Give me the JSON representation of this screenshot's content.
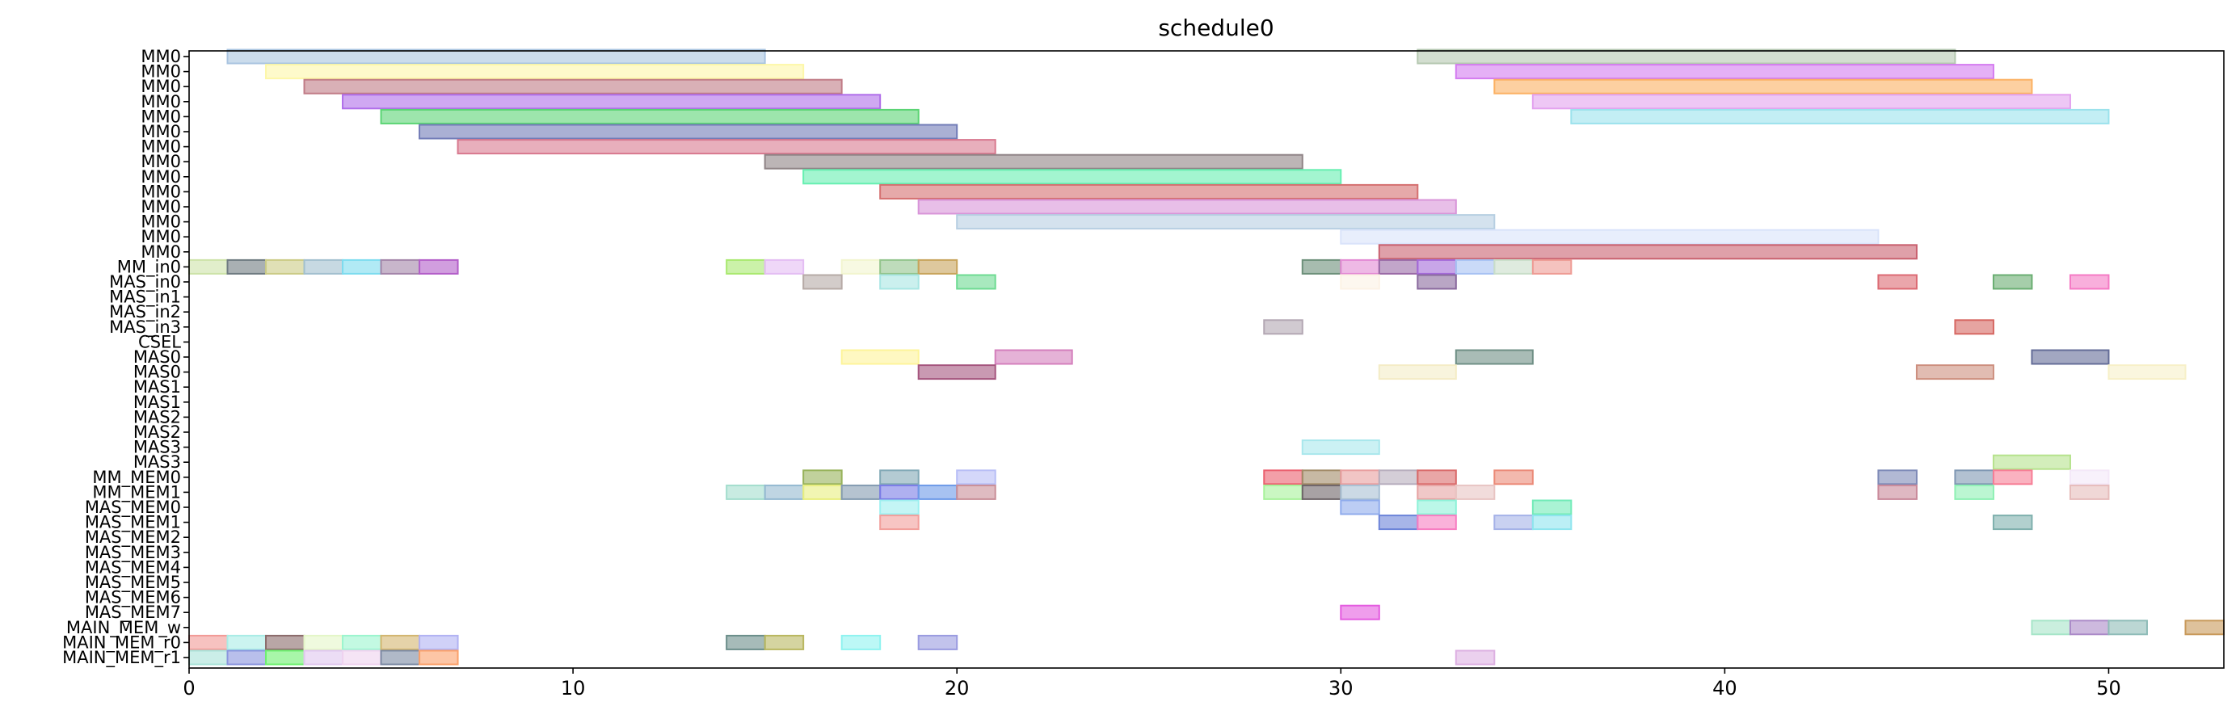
{
  "chart_data": {
    "type": "gantt",
    "title": "schedule0",
    "xlim": [
      0,
      53
    ],
    "xticks": [
      0,
      10,
      20,
      30,
      40,
      50
    ],
    "grid": false,
    "rows": [
      "MM0",
      "MM0",
      "MM0",
      "MM0",
      "MM0",
      "MM0",
      "MM0",
      "MM0",
      "MM0",
      "MM0",
      "MM0",
      "MM0",
      "MM0",
      "MM0",
      "MM_in0",
      "MAS_in0",
      "MAS_in1",
      "MAS_in2",
      "MAS_in3",
      "CSEL",
      "MAS0",
      "MAS0",
      "MAS1",
      "MAS1",
      "MAS2",
      "MAS2",
      "MAS3",
      "MAS3",
      "MM_MEM0",
      "MM_MEM1",
      "MAS_MEM0",
      "MAS_MEM1",
      "MAS_MEM2",
      "MAS_MEM3",
      "MAS_MEM4",
      "MAS_MEM5",
      "MAS_MEM6",
      "MAS_MEM7",
      "MAIN_MEM_w",
      "MAIN_MEM_r0",
      "MAIN_MEM_r1"
    ],
    "tasks": [
      {
        "row": 0,
        "start": 1,
        "end": 15,
        "color": "#a9c4e0"
      },
      {
        "row": 0,
        "start": 32,
        "end": 46,
        "color": "#b5c8b1"
      },
      {
        "row": 1,
        "start": 2,
        "end": 16,
        "color": "#fdf7a9"
      },
      {
        "row": 1,
        "start": 33,
        "end": 47,
        "color": "#d47cf0"
      },
      {
        "row": 2,
        "start": 3,
        "end": 17,
        "color": "#c07b86"
      },
      {
        "row": 2,
        "start": 34,
        "end": 48,
        "color": "#fcb163"
      },
      {
        "row": 3,
        "start": 4,
        "end": 18,
        "color": "#b06ee9"
      },
      {
        "row": 3,
        "start": 35,
        "end": 49,
        "color": "#e3a2ef"
      },
      {
        "row": 4,
        "start": 5,
        "end": 19,
        "color": "#5bd474"
      },
      {
        "row": 4,
        "start": 36,
        "end": 50,
        "color": "#9be2ec"
      },
      {
        "row": 5,
        "start": 6,
        "end": 20,
        "color": "#727cb7"
      },
      {
        "row": 6,
        "start": 7,
        "end": 21,
        "color": "#d8798f"
      },
      {
        "row": 7,
        "start": 15,
        "end": 29,
        "color": "#8f8386"
      },
      {
        "row": 8,
        "start": 16,
        "end": 30,
        "color": "#66efb1"
      },
      {
        "row": 9,
        "start": 18,
        "end": 32,
        "color": "#d57070"
      },
      {
        "row": 10,
        "start": 19,
        "end": 33,
        "color": "#d895d9"
      },
      {
        "row": 11,
        "start": 20,
        "end": 34,
        "color": "#b7cfe2"
      },
      {
        "row": 12,
        "start": 30,
        "end": 44,
        "color": "#d9e3fa"
      },
      {
        "row": 13,
        "start": 31,
        "end": 45,
        "color": "#c9616f"
      },
      {
        "row": 14,
        "start": 0,
        "end": 1,
        "color": "#cde3a8"
      },
      {
        "row": 14,
        "start": 1,
        "end": 2,
        "color": "#6f7b81"
      },
      {
        "row": 14,
        "start": 2,
        "end": 3,
        "color": "#cbcb86"
      },
      {
        "row": 14,
        "start": 3,
        "end": 4,
        "color": "#a2c0cf"
      },
      {
        "row": 14,
        "start": 4,
        "end": 5,
        "color": "#7ddcef"
      },
      {
        "row": 14,
        "start": 5,
        "end": 6,
        "color": "#a385a9"
      },
      {
        "row": 14,
        "start": 6,
        "end": 7,
        "color": "#b35ec9"
      },
      {
        "row": 14,
        "start": 14,
        "end": 15,
        "color": "#a9e96f"
      },
      {
        "row": 14,
        "start": 15,
        "end": 16,
        "color": "#e4bdf3"
      },
      {
        "row": 14,
        "start": 17,
        "end": 18,
        "color": "#f2f5cf"
      },
      {
        "row": 14,
        "start": 18,
        "end": 19,
        "color": "#93c58d"
      },
      {
        "row": 14,
        "start": 19,
        "end": 20,
        "color": "#c8a45c"
      },
      {
        "row": 14,
        "start": 29,
        "end": 30,
        "color": "#6d907a"
      },
      {
        "row": 14,
        "start": 30,
        "end": 31,
        "color": "#e38ad4"
      },
      {
        "row": 14,
        "start": 31,
        "end": 32,
        "color": "#9a6aa6"
      },
      {
        "row": 14,
        "start": 32,
        "end": 33,
        "color": "#a46ad9"
      },
      {
        "row": 14,
        "start": 33,
        "end": 34,
        "color": "#a7c2f3"
      },
      {
        "row": 14,
        "start": 34,
        "end": 35,
        "color": "#c9dec9"
      },
      {
        "row": 14,
        "start": 35,
        "end": 36,
        "color": "#ee9b94"
      },
      {
        "row": 15,
        "start": 16,
        "end": 17,
        "color": "#b6aaa6"
      },
      {
        "row": 15,
        "start": 18,
        "end": 19,
        "color": "#a8e6e3"
      },
      {
        "row": 15,
        "start": 20,
        "end": 21,
        "color": "#6edb92"
      },
      {
        "row": 15,
        "start": 30,
        "end": 31,
        "color": "#fcf2e5"
      },
      {
        "row": 15,
        "start": 32,
        "end": 33,
        "color": "#8a6a9e"
      },
      {
        "row": 15,
        "start": 44,
        "end": 45,
        "color": "#dc6a73"
      },
      {
        "row": 15,
        "start": 47,
        "end": 48,
        "color": "#6aae72"
      },
      {
        "row": 15,
        "start": 49,
        "end": 50,
        "color": "#f57ac4"
      },
      {
        "row": 18,
        "start": 28,
        "end": 29,
        "color": "#b3a7b3"
      },
      {
        "row": 18,
        "start": 46,
        "end": 47,
        "color": "#d66762"
      },
      {
        "row": 20,
        "start": 17,
        "end": 19,
        "color": "#fdf49a"
      },
      {
        "row": 20,
        "start": 21,
        "end": 23,
        "color": "#d47fbc"
      },
      {
        "row": 20,
        "start": 33,
        "end": 35,
        "color": "#6f8f85"
      },
      {
        "row": 20,
        "start": 48,
        "end": 50,
        "color": "#646d98"
      },
      {
        "row": 21,
        "start": 19,
        "end": 21,
        "color": "#a5557e"
      },
      {
        "row": 21,
        "start": 31,
        "end": 33,
        "color": "#f4ecc6"
      },
      {
        "row": 21,
        "start": 45,
        "end": 47,
        "color": "#cd8f7f"
      },
      {
        "row": 21,
        "start": 50,
        "end": 52,
        "color": "#f7f0c8"
      },
      {
        "row": 26,
        "start": 29,
        "end": 31,
        "color": "#a8e7ec"
      },
      {
        "row": 27,
        "start": 47,
        "end": 49,
        "color": "#b6e28d"
      },
      {
        "row": 28,
        "start": 16,
        "end": 17,
        "color": "#97b25a"
      },
      {
        "row": 28,
        "start": 18,
        "end": 19,
        "color": "#82a9b6"
      },
      {
        "row": 28,
        "start": 20,
        "end": 21,
        "color": "#b7bdf6"
      },
      {
        "row": 28,
        "start": 28,
        "end": 29,
        "color": "#eb5f6e"
      },
      {
        "row": 28,
        "start": 29,
        "end": 30,
        "color": "#a18a67"
      },
      {
        "row": 28,
        "start": 30,
        "end": 31,
        "color": "#e89e9f"
      },
      {
        "row": 28,
        "start": 31,
        "end": 32,
        "color": "#b7aebd"
      },
      {
        "row": 28,
        "start": 32,
        "end": 33,
        "color": "#da6a6a"
      },
      {
        "row": 28,
        "start": 34,
        "end": 35,
        "color": "#eb8a78"
      },
      {
        "row": 28,
        "start": 44,
        "end": 45,
        "color": "#7e8ab7"
      },
      {
        "row": 28,
        "start": 46,
        "end": 47,
        "color": "#7f97b2"
      },
      {
        "row": 28,
        "start": 47,
        "end": 48,
        "color": "#f77e96"
      },
      {
        "row": 28,
        "start": 49,
        "end": 50,
        "color": "#f4e8f8"
      },
      {
        "row": 29,
        "start": 14,
        "end": 15,
        "color": "#a3ddcd"
      },
      {
        "row": 29,
        "start": 15,
        "end": 16,
        "color": "#94b9d1"
      },
      {
        "row": 29,
        "start": 16,
        "end": 17,
        "color": "#e8ee7e"
      },
      {
        "row": 29,
        "start": 17,
        "end": 18,
        "color": "#849bb1"
      },
      {
        "row": 29,
        "start": 18,
        "end": 19,
        "color": "#7a7be6"
      },
      {
        "row": 29,
        "start": 19,
        "end": 20,
        "color": "#6d9ae8"
      },
      {
        "row": 29,
        "start": 20,
        "end": 21,
        "color": "#c98e98"
      },
      {
        "row": 29,
        "start": 28,
        "end": 29,
        "color": "#a7f29a"
      },
      {
        "row": 29,
        "start": 29,
        "end": 30,
        "color": "#6e6468"
      },
      {
        "row": 29,
        "start": 30,
        "end": 31,
        "color": "#a8bfd3"
      },
      {
        "row": 29,
        "start": 32,
        "end": 33,
        "color": "#e6a3a3"
      },
      {
        "row": 29,
        "start": 33,
        "end": 34,
        "color": "#e8c5c3"
      },
      {
        "row": 29,
        "start": 44,
        "end": 45,
        "color": "#c9899a"
      },
      {
        "row": 29,
        "start": 46,
        "end": 47,
        "color": "#8ef0b4"
      },
      {
        "row": 29,
        "start": 49,
        "end": 50,
        "color": "#e6bcbb"
      },
      {
        "row": 30,
        "start": 18,
        "end": 19,
        "color": "#9defef"
      },
      {
        "row": 30,
        "start": 30,
        "end": 31,
        "color": "#8fabec"
      },
      {
        "row": 30,
        "start": 32,
        "end": 33,
        "color": "#8ef2d8"
      },
      {
        "row": 30,
        "start": 35,
        "end": 36,
        "color": "#72ebb8"
      },
      {
        "row": 31,
        "start": 18,
        "end": 19,
        "color": "#f29f9b"
      },
      {
        "row": 31,
        "start": 31,
        "end": 32,
        "color": "#6c84d9"
      },
      {
        "row": 31,
        "start": 32,
        "end": 33,
        "color": "#f77ec2"
      },
      {
        "row": 31,
        "start": 34,
        "end": 35,
        "color": "#a5b2e8"
      },
      {
        "row": 31,
        "start": 35,
        "end": 36,
        "color": "#8ee5ee"
      },
      {
        "row": 31,
        "start": 47,
        "end": 48,
        "color": "#7fb0ad"
      },
      {
        "row": 37,
        "start": 30,
        "end": 31,
        "color": "#e45be0"
      },
      {
        "row": 38,
        "start": 48,
        "end": 49,
        "color": "#a6e5c8"
      },
      {
        "row": 38,
        "start": 49,
        "end": 50,
        "color": "#ab8ac8"
      },
      {
        "row": 38,
        "start": 50,
        "end": 51,
        "color": "#8fbcb8"
      },
      {
        "row": 38,
        "start": 52,
        "end": 53,
        "color": "#c8995a"
      },
      {
        "row": 39,
        "start": 0,
        "end": 1,
        "color": "#f29a96"
      },
      {
        "row": 39,
        "start": 1,
        "end": 2,
        "color": "#a9ece6"
      },
      {
        "row": 39,
        "start": 2,
        "end": 3,
        "color": "#8b6b6b"
      },
      {
        "row": 39,
        "start": 3,
        "end": 4,
        "color": "#e4f6c8"
      },
      {
        "row": 39,
        "start": 4,
        "end": 5,
        "color": "#9bf5cf"
      },
      {
        "row": 39,
        "start": 5,
        "end": 6,
        "color": "#d3b670"
      },
      {
        "row": 39,
        "start": 6,
        "end": 7,
        "color": "#b1b2f3"
      },
      {
        "row": 39,
        "start": 14,
        "end": 15,
        "color": "#6b8e8a"
      },
      {
        "row": 39,
        "start": 15,
        "end": 16,
        "color": "#b9b760"
      },
      {
        "row": 39,
        "start": 17,
        "end": 18,
        "color": "#8ff3f0"
      },
      {
        "row": 39,
        "start": 19,
        "end": 20,
        "color": "#9a9be0"
      },
      {
        "row": 40,
        "start": 0,
        "end": 1,
        "color": "#a9e3d9"
      },
      {
        "row": 40,
        "start": 1,
        "end": 2,
        "color": "#8a95de"
      },
      {
        "row": 40,
        "start": 2,
        "end": 3,
        "color": "#6ef070"
      },
      {
        "row": 40,
        "start": 3,
        "end": 4,
        "color": "#e0c7ee"
      },
      {
        "row": 40,
        "start": 4,
        "end": 5,
        "color": "#efd2ef"
      },
      {
        "row": 40,
        "start": 5,
        "end": 6,
        "color": "#7c8aa3"
      },
      {
        "row": 40,
        "start": 6,
        "end": 7,
        "color": "#fba06a"
      },
      {
        "row": 40,
        "start": 33,
        "end": 34,
        "color": "#ddb0e2"
      }
    ]
  }
}
